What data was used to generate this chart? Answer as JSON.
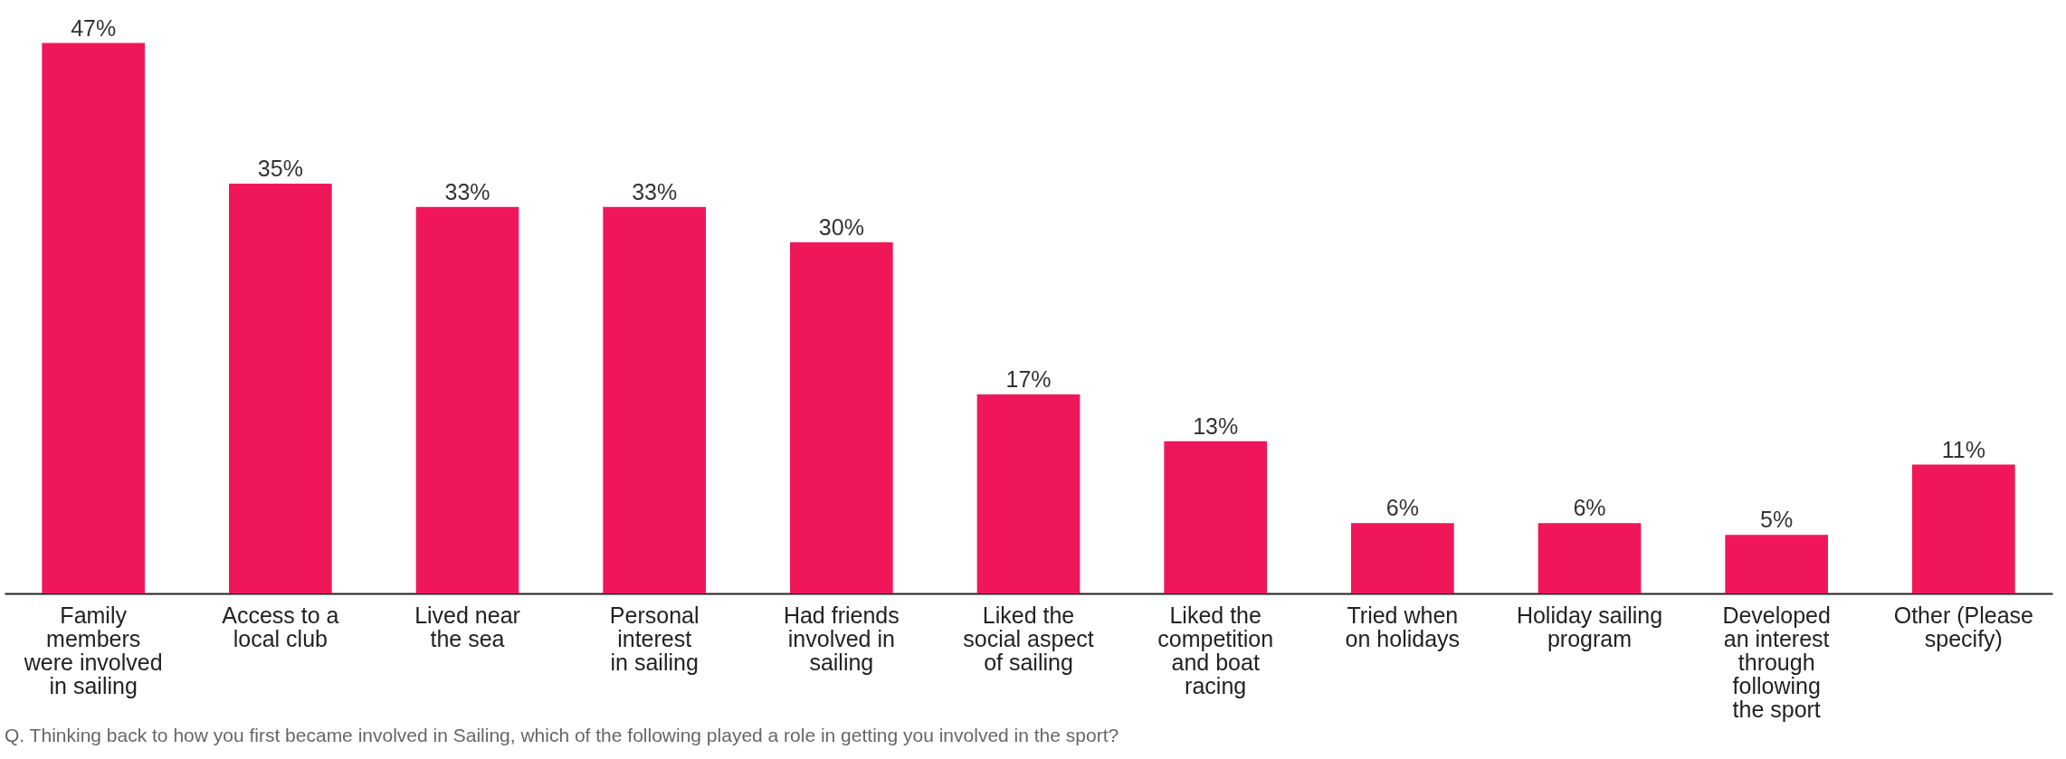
{
  "chart_data": {
    "type": "bar",
    "categories": [
      "Family\nmembers\nwere involved\nin sailing",
      "Access to a\nlocal club",
      "Lived near\nthe sea",
      "Personal\ninterest\nin sailing",
      "Had friends\ninvolved in\nsailing",
      "Liked the\nsocial aspect\nof sailing",
      "Liked the\ncompetition\nand boat\nracing",
      "Tried when\non holidays",
      "Holiday sailing\nprogram",
      "Developed\nan interest\nthrough\nfollowing\nthe sport",
      "Other (Please\nspecify)"
    ],
    "values": [
      47,
      35,
      33,
      33,
      30,
      17,
      13,
      6,
      6,
      5,
      11
    ],
    "value_labels": [
      "47%",
      "35%",
      "33%",
      "33%",
      "30%",
      "17%",
      "13%",
      "6%",
      "6%",
      "5%",
      "11%"
    ],
    "color": "#ef1759",
    "grid": false,
    "annotations": [
      "Q. Thinking back to how you first became involved in Sailing, which of the following played a role in getting you involved in the sport?"
    ]
  }
}
